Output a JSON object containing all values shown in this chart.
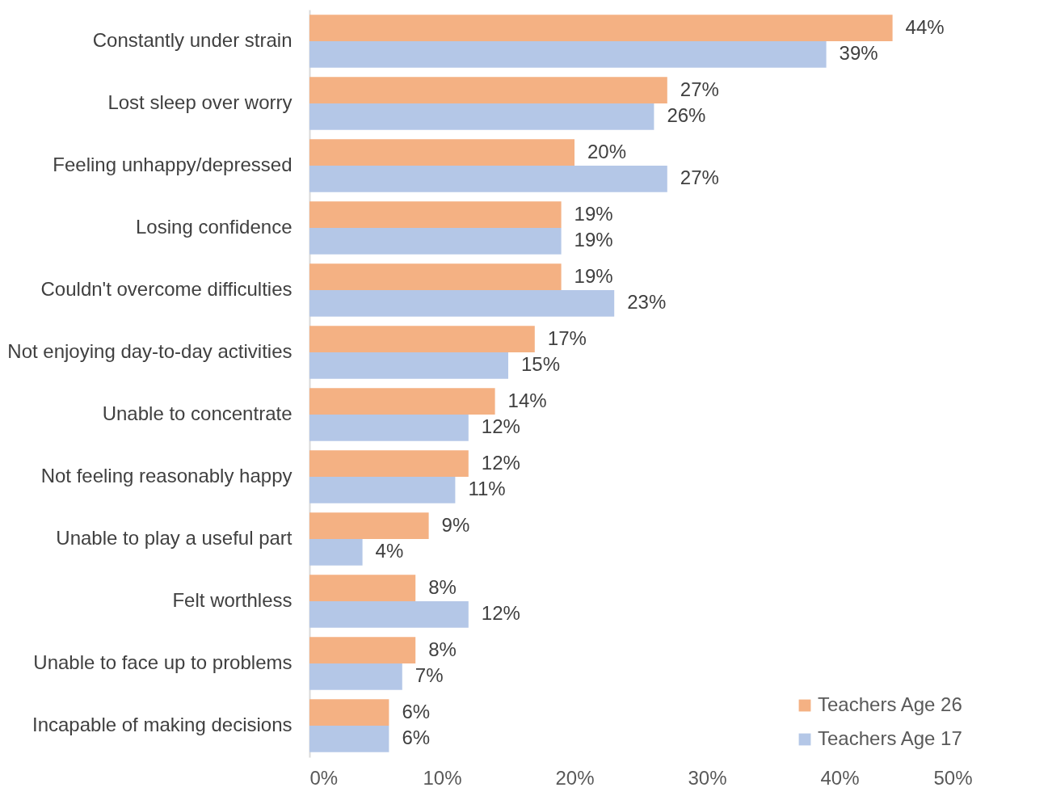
{
  "chart_data": {
    "type": "bar",
    "orientation": "horizontal",
    "categories": [
      "Constantly under strain",
      "Lost sleep over worry",
      "Feeling unhappy/depressed",
      "Losing confidence",
      "Couldn't overcome difficulties",
      "Not enjoying day-to-day activities ",
      "Unable to concentrate",
      "Not feeling reasonably happy",
      "Unable to play a useful part",
      "Felt worthless",
      "Unable to face up to problems",
      "Incapable of making decisions"
    ],
    "series": [
      {
        "name": "Teachers Age 26",
        "color": "#f4b183",
        "values": [
          44,
          27,
          20,
          19,
          19,
          17,
          14,
          12,
          9,
          8,
          8,
          6
        ],
        "value_labels": [
          "44%",
          "27%",
          "20%",
          "19%",
          "19%",
          "17%",
          "14%",
          "12%",
          "9%",
          "8%",
          "8%",
          "6%"
        ]
      },
      {
        "name": "Teachers Age 17",
        "color": "#b4c7e7",
        "values": [
          39,
          26,
          27,
          19,
          23,
          15,
          12,
          11,
          4,
          12,
          7,
          6
        ],
        "value_labels": [
          "39%",
          "26%",
          "27%",
          "19%",
          "23%",
          "15%",
          "12%",
          "11%",
          "4%",
          "12%",
          "7%",
          "6%"
        ]
      }
    ],
    "xlim": [
      0,
      50
    ],
    "xticks": [
      {
        "value": 0,
        "label": "0%"
      },
      {
        "value": 10,
        "label": "10%"
      },
      {
        "value": 20,
        "label": "20%"
      },
      {
        "value": 30,
        "label": "30%"
      },
      {
        "value": 40,
        "label": "40%"
      },
      {
        "value": 50,
        "label": "50%"
      }
    ],
    "grid": false,
    "legend": "bottom right"
  }
}
